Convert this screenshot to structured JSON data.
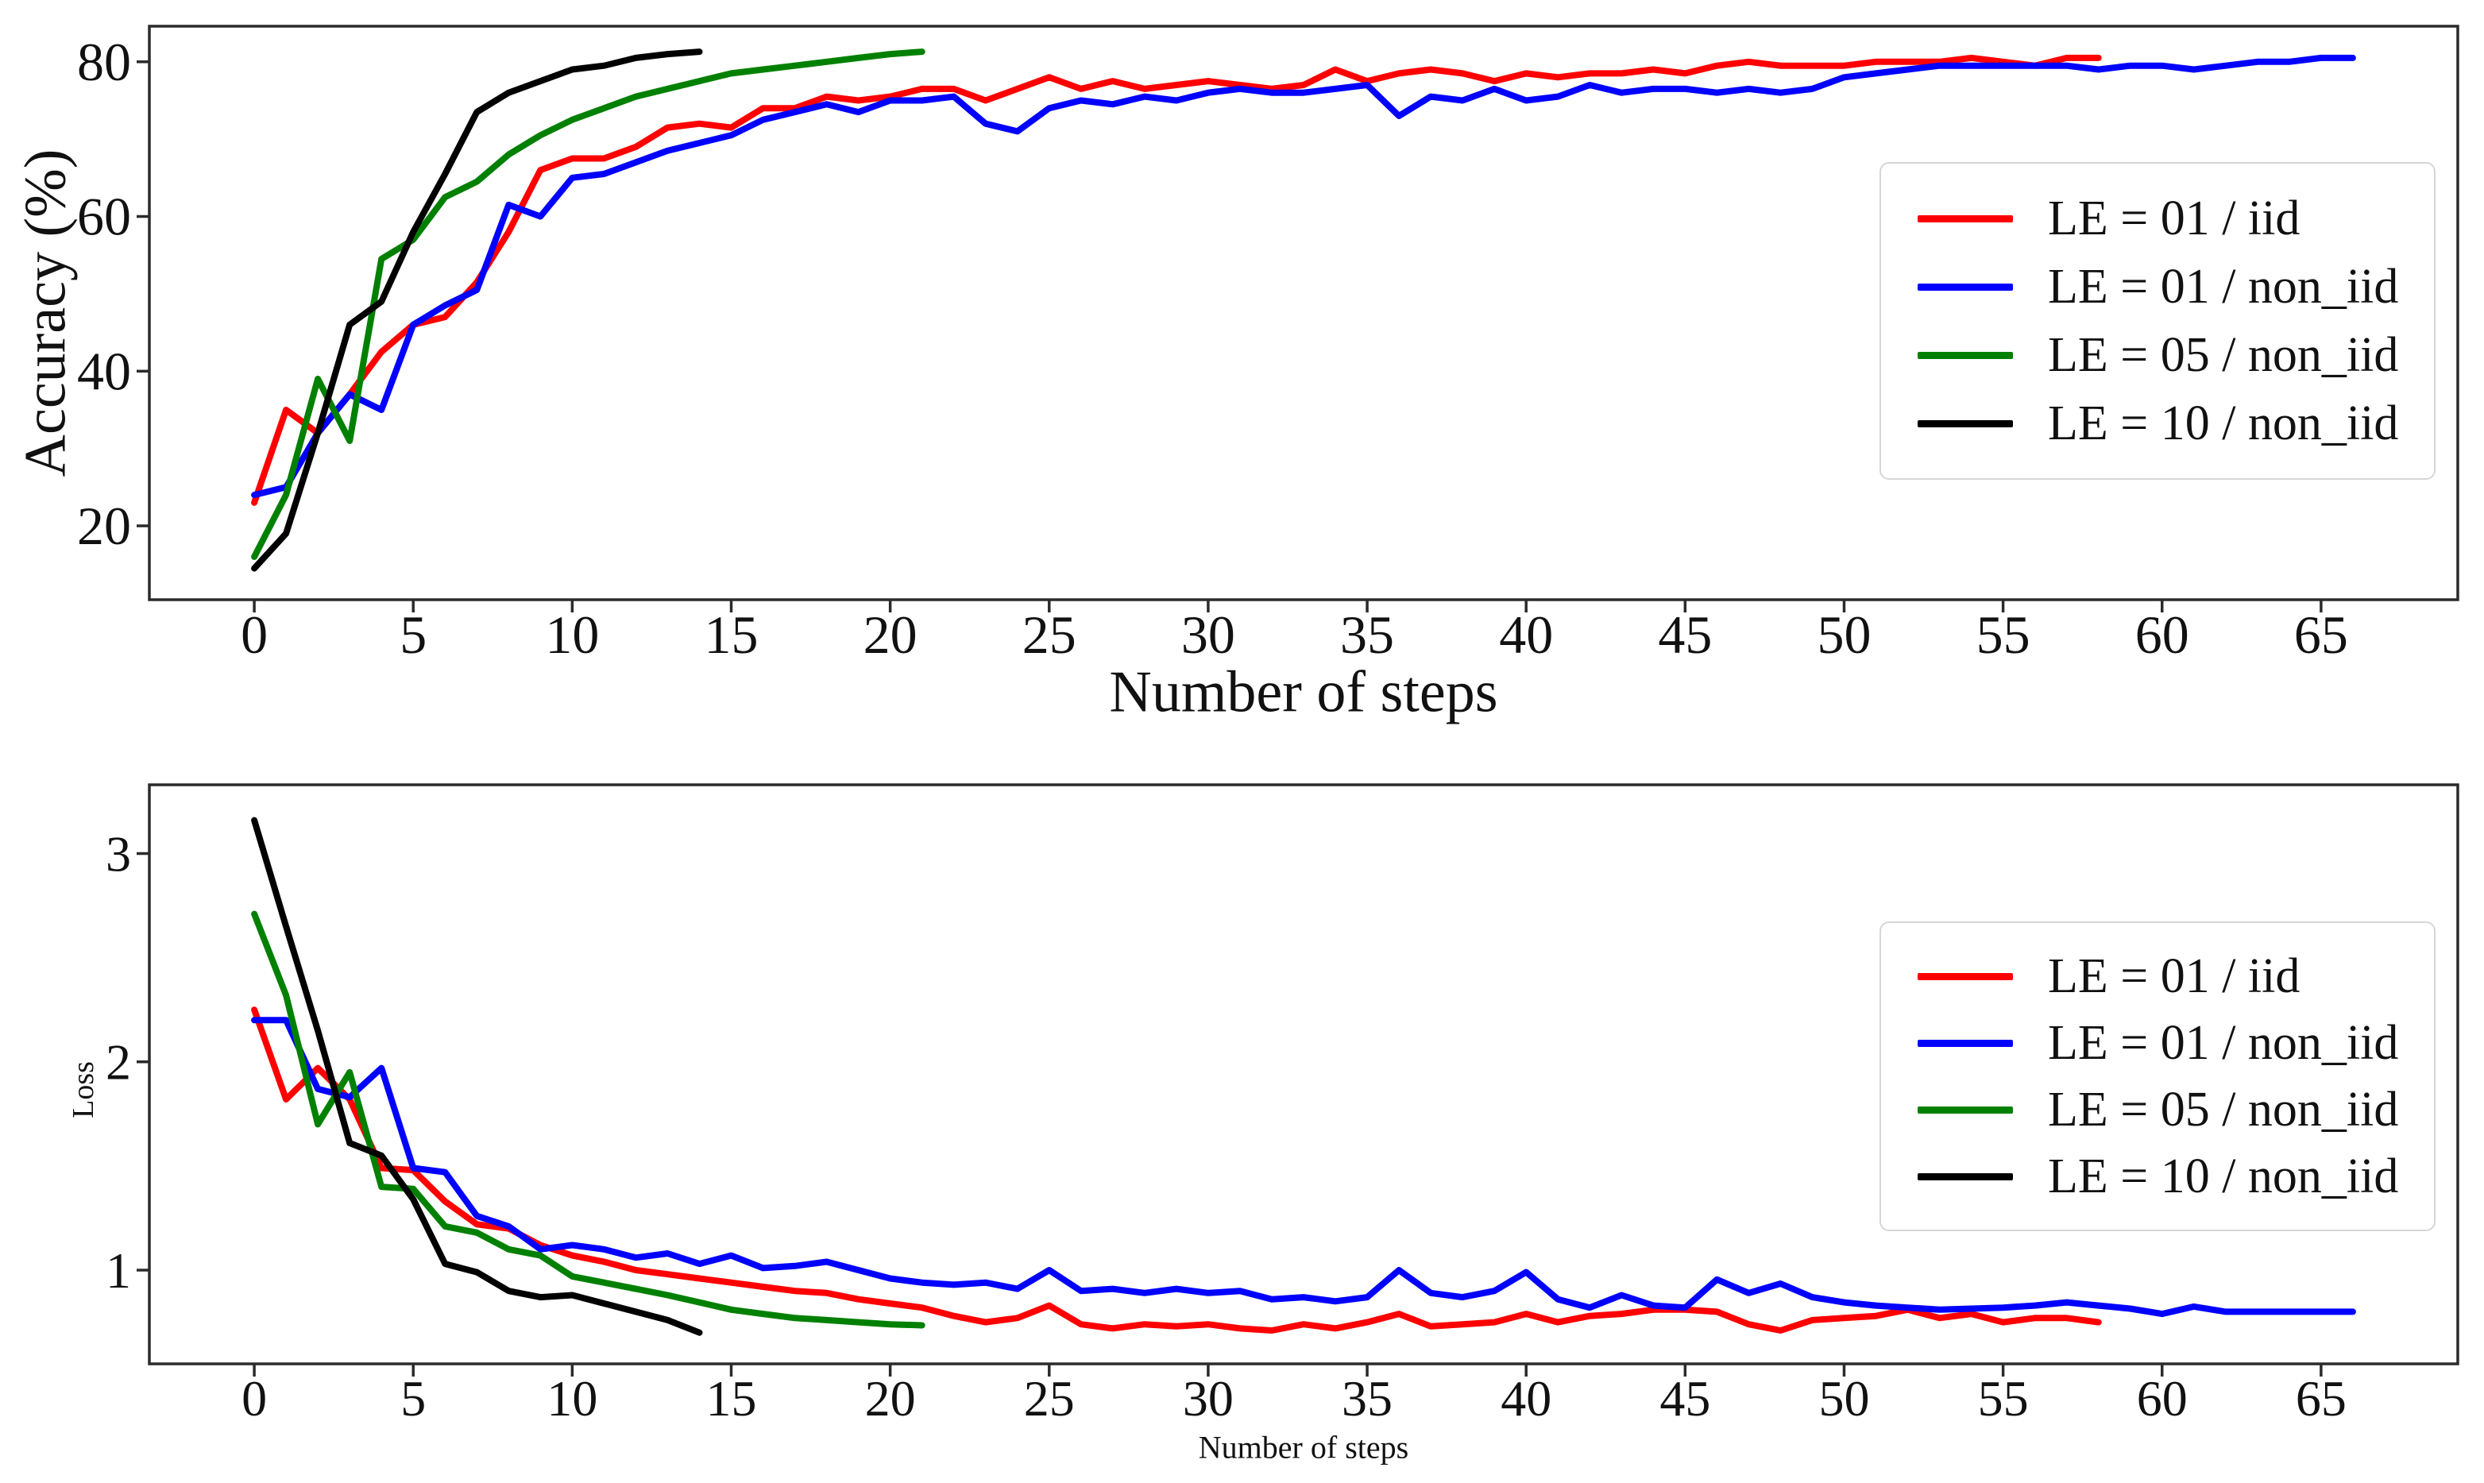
{
  "figure": {
    "background": "#ffffff",
    "spine_color": "#2b2b2b",
    "text_color": "#111111"
  },
  "chart_data": [
    {
      "type": "line",
      "title": "",
      "xlabel": "Number of steps",
      "ylabel": "Accuracy (%)",
      "x_is_index": true,
      "xlim": [
        -3.3,
        69.3
      ],
      "ylim": [
        10.45,
        84.6
      ],
      "xticks": [
        0,
        5,
        10,
        15,
        20,
        25,
        30,
        35,
        40,
        45,
        50,
        55,
        60,
        65
      ],
      "yticks": [
        20,
        40,
        60,
        80
      ],
      "grid": false,
      "legend_position": "upper right",
      "series": [
        {
          "name": "LE = 01 / iid",
          "color": "#ff0000",
          "values": [
            23,
            35,
            32,
            37,
            42.5,
            46,
            47,
            51.5,
            58,
            66,
            67.5,
            67.5,
            69,
            71.5,
            72,
            71.5,
            74,
            74,
            75.5,
            75,
            75.5,
            76.5,
            76.5,
            75,
            76.5,
            78,
            76.5,
            77.5,
            76.5,
            77,
            77.5,
            77,
            76.5,
            77,
            79,
            77.5,
            78.5,
            79,
            78.5,
            77.5,
            78.5,
            78,
            78.5,
            78.5,
            79,
            78.5,
            79.5,
            80,
            79.5,
            79.5,
            79.5,
            80,
            80,
            80,
            80.5,
            80,
            79.5,
            80.5,
            80.5
          ]
        },
        {
          "name": "LE = 01 / non_iid",
          "color": "#0000ff",
          "values": [
            24,
            25,
            32,
            37,
            35,
            46,
            48.5,
            50.5,
            61.5,
            60,
            65,
            65.5,
            67,
            68.5,
            69.5,
            70.5,
            72.5,
            73.5,
            74.5,
            73.5,
            75,
            75,
            75.5,
            72,
            71,
            74,
            75,
            74.5,
            75.5,
            75,
            76,
            76.5,
            76,
            76,
            76.5,
            77,
            73,
            75.5,
            75,
            76.5,
            75,
            75.5,
            77,
            76,
            76.5,
            76.5,
            76,
            76.5,
            76,
            76.5,
            78,
            78.5,
            79,
            79.5,
            79.5,
            79.5,
            79.5,
            79.5,
            79,
            79.5,
            79.5,
            79,
            79.5,
            80,
            80,
            80.5,
            80.5
          ]
        },
        {
          "name": "LE = 05 / non_iid",
          "color": "#008000",
          "values": [
            16,
            24,
            39,
            31,
            54.5,
            57,
            62.5,
            64.5,
            68,
            70.5,
            72.5,
            74,
            75.5,
            76.5,
            77.5,
            78.5,
            79,
            79.5,
            80,
            80.5,
            81,
            81.3
          ]
        },
        {
          "name": "LE = 10 / non_iid",
          "color": "#000000",
          "values": [
            14.5,
            19,
            32,
            46,
            49,
            58,
            65.5,
            73.5,
            76,
            77.5,
            79,
            79.5,
            80.5,
            81,
            81.3
          ]
        }
      ]
    },
    {
      "type": "line",
      "title": "",
      "xlabel": "Number of steps",
      "ylabel": "Loss",
      "x_is_index": true,
      "xlim": [
        -3.3,
        69.3
      ],
      "ylim": [
        0.55,
        3.33
      ],
      "xticks": [
        0,
        5,
        10,
        15,
        20,
        25,
        30,
        35,
        40,
        45,
        50,
        55,
        60,
        65
      ],
      "yticks": [
        1,
        2,
        3
      ],
      "grid": false,
      "legend_position": "upper right",
      "series": [
        {
          "name": "LE = 01 / iid",
          "color": "#ff0000",
          "values": [
            2.25,
            1.82,
            1.97,
            1.82,
            1.49,
            1.48,
            1.33,
            1.22,
            1.2,
            1.12,
            1.07,
            1.04,
            1.0,
            0.98,
            0.96,
            0.94,
            0.92,
            0.9,
            0.89,
            0.86,
            0.84,
            0.82,
            0.78,
            0.75,
            0.77,
            0.83,
            0.74,
            0.72,
            0.74,
            0.73,
            0.74,
            0.72,
            0.71,
            0.74,
            0.72,
            0.75,
            0.79,
            0.73,
            0.74,
            0.75,
            0.79,
            0.75,
            0.78,
            0.79,
            0.81,
            0.81,
            0.8,
            0.74,
            0.71,
            0.76,
            0.77,
            0.78,
            0.81,
            0.77,
            0.79,
            0.75,
            0.77,
            0.77,
            0.75
          ]
        },
        {
          "name": "LE = 01 / non_iid",
          "color": "#0000ff",
          "values": [
            2.2,
            2.2,
            1.87,
            1.83,
            1.97,
            1.49,
            1.47,
            1.26,
            1.21,
            1.1,
            1.12,
            1.1,
            1.06,
            1.08,
            1.03,
            1.07,
            1.01,
            1.02,
            1.04,
            1.0,
            0.96,
            0.94,
            0.93,
            0.94,
            0.91,
            1.0,
            0.9,
            0.91,
            0.89,
            0.91,
            0.89,
            0.9,
            0.86,
            0.87,
            0.85,
            0.87,
            1.0,
            0.89,
            0.87,
            0.9,
            0.99,
            0.86,
            0.82,
            0.88,
            0.83,
            0.82,
            0.955,
            0.89,
            0.935,
            0.87,
            0.845,
            0.83,
            0.82,
            0.81,
            0.815,
            0.82,
            0.83,
            0.845,
            0.83,
            0.815,
            0.79,
            0.825,
            0.8,
            0.8,
            0.8,
            0.8,
            0.8
          ]
        },
        {
          "name": "LE = 05 / non_iid",
          "color": "#008000",
          "values": [
            2.71,
            2.32,
            1.7,
            1.95,
            1.4,
            1.39,
            1.21,
            1.18,
            1.1,
            1.07,
            0.97,
            0.94,
            0.91,
            0.88,
            0.845,
            0.81,
            0.79,
            0.77,
            0.76,
            0.75,
            0.74,
            0.735
          ]
        },
        {
          "name": "LE = 10 / non_iid",
          "color": "#000000",
          "values": [
            3.16,
            2.65,
            2.15,
            1.61,
            1.55,
            1.34,
            1.03,
            0.99,
            0.9,
            0.87,
            0.88,
            0.84,
            0.8,
            0.76,
            0.7
          ]
        }
      ]
    }
  ]
}
